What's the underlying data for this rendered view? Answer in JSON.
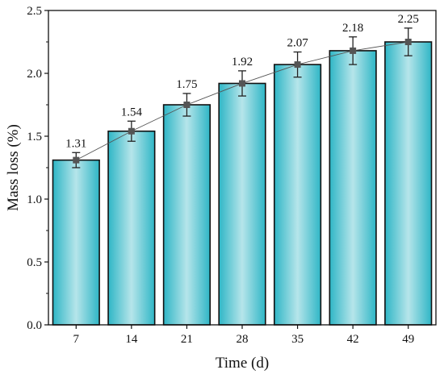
{
  "chart_data": {
    "type": "bar",
    "xlabel": "Time (d)",
    "ylabel": "Mass loss (%)",
    "ylim": [
      0.0,
      2.5
    ],
    "yticks": [
      "0.0",
      "0.5",
      "1.0",
      "1.5",
      "2.0",
      "2.5"
    ],
    "categories": [
      "7",
      "14",
      "21",
      "28",
      "35",
      "42",
      "49"
    ],
    "values": [
      1.31,
      1.54,
      1.75,
      1.92,
      2.07,
      2.18,
      2.25
    ],
    "value_labels": [
      "1.31",
      "1.54",
      "1.75",
      "1.92",
      "2.07",
      "2.18",
      "2.25"
    ],
    "error": [
      0.06,
      0.08,
      0.09,
      0.1,
      0.1,
      0.11,
      0.11
    ],
    "trend_line": true,
    "grid": false
  },
  "colors": {
    "bar_center": "#b6e5ea",
    "bar_edge": "#2fb6c6",
    "bar_stroke": "#111111",
    "marker": "#555555",
    "line": "#555555"
  }
}
